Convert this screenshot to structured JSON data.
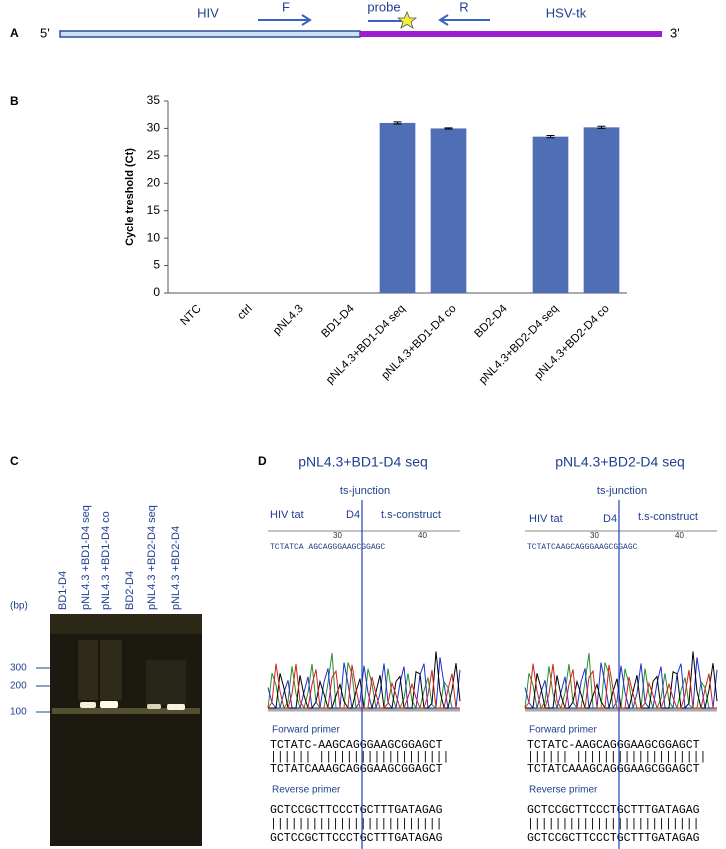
{
  "panel_a": {
    "label": "A",
    "five_prime": "5'",
    "three_prime": "3'",
    "hiv": "HIV",
    "forward": "F",
    "probe": "probe",
    "reverse": "R",
    "hsv_tk": "HSV-tk"
  },
  "chart_data": {
    "type": "bar",
    "panel_label": "B",
    "y_label": "Cycle treshold (Ct)",
    "categories": [
      "NTC",
      "ctrl",
      "pNL4.3",
      "BD1-D4",
      "pNL4.3+BD1-D4 seq",
      "pNL4.3+BD1-D4 co",
      "BD2-D4",
      "pNL4.3+BD2-D4 seq",
      "pNL4.3+BD2-D4 co"
    ],
    "values": [
      null,
      null,
      null,
      null,
      31.0,
      30.0,
      null,
      28.5,
      30.2
    ],
    "errors": [
      null,
      null,
      null,
      null,
      0.2,
      0.1,
      null,
      0.2,
      0.2
    ],
    "color": "#4f6eb5",
    "ylim": [
      0,
      35
    ],
    "yticks": [
      0,
      5,
      10,
      15,
      20,
      25,
      30,
      35
    ]
  },
  "panel_c": {
    "label": "C",
    "unit": "(bp)",
    "lanes": [
      "BD1-D4",
      "pNL4.3 +BD1-D4 seq",
      "pNL4.3 +BD1-D4 co",
      "BD2-D4",
      "pNL4.3 +BD2-D4 seq",
      "pNL4.3 +BD2-D4"
    ],
    "markers": [
      300,
      200,
      100
    ]
  },
  "panel_d": {
    "label": "D",
    "traces": [
      {
        "title": "pNL4.3+BD1-D4 seq",
        "junction": "ts-junction",
        "left": "HIV tat",
        "middle": "D4",
        "right": "t.s-construct",
        "ticks": [
          30,
          40
        ],
        "strip": "TCTATCA AGCAGGGAAGCGGAGC",
        "forward_label": "Forward primer",
        "forward": [
          "TCTATC-AAGCAGGGAAGCGGAGCT",
          "|||||| |||||||||||||||||||",
          "TCTATCAAAGCAGGGAAGCGGAGCT"
        ],
        "reverse_label": "Reverse primer",
        "reverse": [
          "GCTCCGCTTCCCTGCTTTGATAGAG",
          "|||||||||||||||||||||||||",
          "GCTCCGCTTCCCTGCTTTGATAGAG"
        ]
      },
      {
        "title": "pNL4.3+BD2-D4 seq",
        "junction": "ts-junction",
        "left": "HIV tat",
        "middle": "D4",
        "right": "t.s-construct",
        "ticks": [
          30,
          40
        ],
        "strip": "TCTATCAAGCAGGGAAGCGGAGC",
        "forward_label": "Forward primer",
        "forward": [
          "TCTATC-AAGCAGGGAAGCGGAGCT",
          "|||||| |||||||||||||||||||",
          "TCTATCAAAGCAGGGAAGCGGAGCT"
        ],
        "reverse_label": "Reverse primer",
        "reverse": [
          "GCTCCGCTTCCCTGCTTTGATAGAG",
          "|||||||||||||||||||||||||",
          "GCTCCGCTTCCCTGCTTTGATAGAG"
        ]
      }
    ]
  }
}
